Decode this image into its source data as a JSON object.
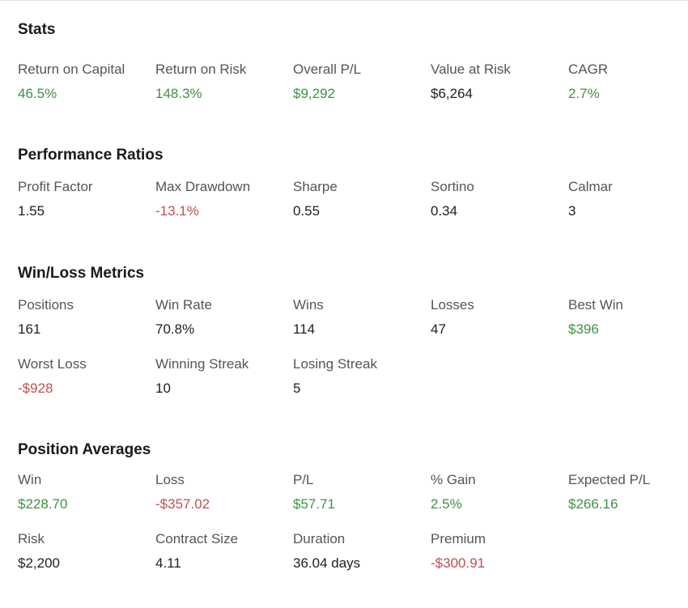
{
  "sections": {
    "stats": {
      "title": "Stats",
      "metrics": [
        {
          "label": "Return on Capital",
          "value": "46.5%",
          "tone": "pos"
        },
        {
          "label": "Return on Risk",
          "value": "148.3%",
          "tone": "pos"
        },
        {
          "label": "Overall P/L",
          "value": "$9,292",
          "tone": "pos"
        },
        {
          "label": "Value at Risk",
          "value": "$6,264",
          "tone": "neu"
        },
        {
          "label": "CAGR",
          "value": "2.7%",
          "tone": "pos"
        }
      ]
    },
    "ratios": {
      "title": "Performance Ratios",
      "metrics": [
        {
          "label": "Profit Factor",
          "value": "1.55",
          "tone": "neu"
        },
        {
          "label": "Max Drawdown",
          "value": "-13.1%",
          "tone": "neg"
        },
        {
          "label": "Sharpe",
          "value": "0.55",
          "tone": "neu"
        },
        {
          "label": "Sortino",
          "value": "0.34",
          "tone": "neu"
        },
        {
          "label": "Calmar",
          "value": "3",
          "tone": "neu"
        }
      ]
    },
    "winloss": {
      "title": "Win/Loss Metrics",
      "metrics": [
        {
          "label": "Positions",
          "value": "161",
          "tone": "neu"
        },
        {
          "label": "Win Rate",
          "value": "70.8%",
          "tone": "neu"
        },
        {
          "label": "Wins",
          "value": "114",
          "tone": "neu"
        },
        {
          "label": "Losses",
          "value": "47",
          "tone": "neu"
        },
        {
          "label": "Best Win",
          "value": "$396",
          "tone": "pos"
        },
        {
          "label": "Worst Loss",
          "value": "-$928",
          "tone": "neg"
        },
        {
          "label": "Winning Streak",
          "value": "10",
          "tone": "neu"
        },
        {
          "label": "Losing Streak",
          "value": "5",
          "tone": "neu"
        }
      ]
    },
    "averages": {
      "title": "Position Averages",
      "metrics": [
        {
          "label": "Win",
          "value": "$228.70",
          "tone": "pos"
        },
        {
          "label": "Loss",
          "value": "-$357.02",
          "tone": "neg"
        },
        {
          "label": "P/L",
          "value": "$57.71",
          "tone": "pos"
        },
        {
          "label": "% Gain",
          "value": "2.5%",
          "tone": "pos"
        },
        {
          "label": "Expected P/L",
          "value": "$266.16",
          "tone": "pos"
        },
        {
          "label": "Risk",
          "value": "$2,200",
          "tone": "neu"
        },
        {
          "label": "Contract Size",
          "value": "4.11",
          "tone": "neu"
        },
        {
          "label": "Duration",
          "value": "36.04 days",
          "tone": "neu"
        },
        {
          "label": "Premium",
          "value": "-$300.91",
          "tone": "neg"
        }
      ]
    }
  },
  "colors": {
    "positive": "#3f9142",
    "negative": "#c0504d",
    "neutral": "#1f1f1f",
    "label": "#555555"
  }
}
